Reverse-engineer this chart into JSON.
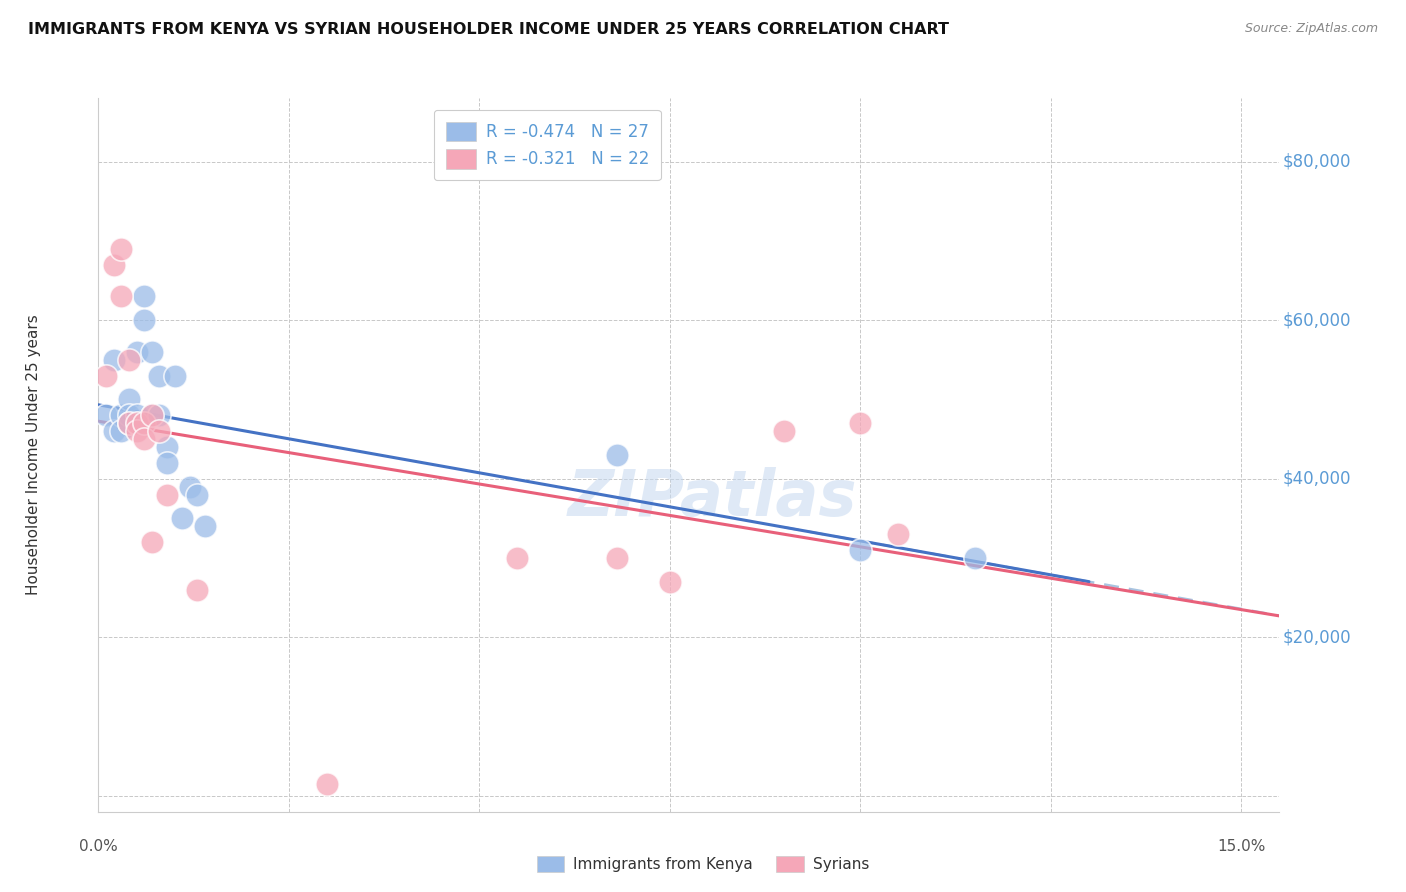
{
  "title": "IMMIGRANTS FROM KENYA VS SYRIAN HOUSEHOLDER INCOME UNDER 25 YEARS CORRELATION CHART",
  "source": "Source: ZipAtlas.com",
  "ylabel": "Householder Income Under 25 years",
  "yticks": [
    0,
    20000,
    40000,
    60000,
    80000
  ],
  "ytick_labels": [
    "",
    "$20,000",
    "$40,000",
    "$60,000",
    "$80,000"
  ],
  "xticks": [
    0.0,
    0.025,
    0.05,
    0.075,
    0.1,
    0.125,
    0.15
  ],
  "xlim": [
    0.0,
    0.155
  ],
  "ylim": [
    -2000,
    88000
  ],
  "plot_ylim": [
    0,
    88000
  ],
  "kenya_R": "-0.474",
  "kenya_N": "27",
  "syria_R": "-0.321",
  "syria_N": "22",
  "kenya_color": "#9bbce8",
  "syria_color": "#f5a7b8",
  "kenya_line_color": "#4472c4",
  "syria_line_color": "#e8607a",
  "dashed_line_color": "#a8c4e0",
  "kenya_x": [
    0.001,
    0.002,
    0.002,
    0.003,
    0.003,
    0.004,
    0.004,
    0.004,
    0.005,
    0.005,
    0.005,
    0.006,
    0.006,
    0.007,
    0.007,
    0.008,
    0.008,
    0.009,
    0.009,
    0.01,
    0.011,
    0.012,
    0.013,
    0.014,
    0.068,
    0.1,
    0.115
  ],
  "kenya_y": [
    48000,
    55000,
    46000,
    48000,
    46000,
    50000,
    48000,
    47000,
    47000,
    48000,
    56000,
    63000,
    60000,
    56000,
    48000,
    53000,
    48000,
    44000,
    42000,
    53000,
    35000,
    39000,
    38000,
    34000,
    43000,
    31000,
    30000
  ],
  "syria_x": [
    0.001,
    0.002,
    0.003,
    0.003,
    0.004,
    0.004,
    0.005,
    0.005,
    0.006,
    0.006,
    0.007,
    0.007,
    0.008,
    0.009,
    0.013,
    0.03,
    0.055,
    0.068,
    0.075,
    0.09,
    0.1,
    0.105
  ],
  "syria_y": [
    53000,
    67000,
    69000,
    63000,
    55000,
    47000,
    47000,
    46000,
    47000,
    45000,
    48000,
    32000,
    46000,
    38000,
    26000,
    1500,
    30000,
    30000,
    27000,
    46000,
    47000,
    33000
  ],
  "watermark": "ZIPatlas",
  "background_color": "#ffffff",
  "grid_color": "#c8c8c8",
  "title_fontsize": 11.5,
  "legend_fontsize": 12,
  "tick_label_color": "#5b9bd5",
  "bottom_legend_labels": [
    "Immigrants from Kenya",
    "Syrians"
  ]
}
